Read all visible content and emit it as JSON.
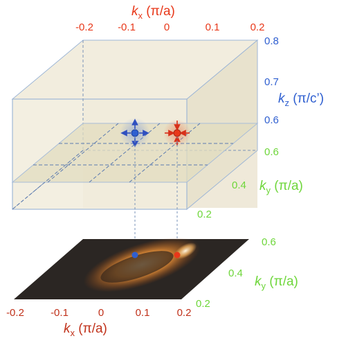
{
  "top_kx_axis": {
    "label_k": "k",
    "label_sub": "x",
    "label_unit": " (π/a)",
    "ticks": [
      "-0.2",
      "-0.1",
      "0",
      "0.1",
      "0.2"
    ],
    "color": "#e8381a"
  },
  "kz_axis": {
    "label_k": "k",
    "label_sub": "z",
    "label_unit": " (π/c’)",
    "ticks": [
      "0.8",
      "0.7",
      "0.6"
    ],
    "color": "#2f5fd0"
  },
  "box_ky_axis": {
    "label_k": "k",
    "label_sub": "y",
    "label_unit": " (π/a)",
    "ticks": [
      "0.6",
      "0.4",
      "0.2"
    ],
    "color": "#6ed63a"
  },
  "map_ky_axis": {
    "label_k": "k",
    "label_sub": "y",
    "label_unit": " (π/a)",
    "ticks": [
      "0.6",
      "0.4",
      "0.2"
    ],
    "color": "#6ed63a"
  },
  "map_kx_axis": {
    "label_k": "k",
    "label_sub": "x",
    "label_unit": " (π/a)",
    "ticks": [
      "-0.2",
      "-0.1",
      "0",
      "0.1",
      "0.2"
    ],
    "color": "#c0311a"
  },
  "points": {
    "blue_color": "#2f5fd0",
    "red_color": "#e8381a"
  }
}
